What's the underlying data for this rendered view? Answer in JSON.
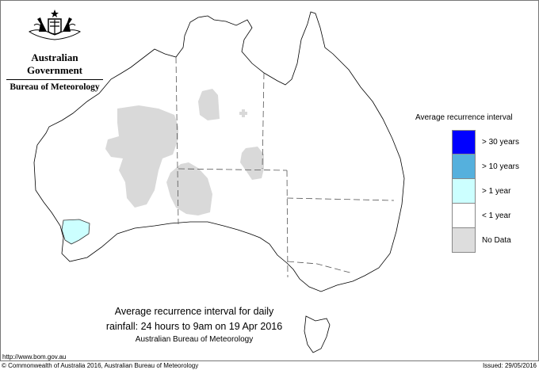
{
  "header": {
    "org_line1": "Australian Government",
    "org_line2": "Bureau of Meteorology",
    "logo": "coat-of-arms"
  },
  "legend": {
    "title": "Average recurrence interval",
    "items": [
      {
        "label": "> 30 years",
        "color": "#0000ff"
      },
      {
        "label": "> 10 years",
        "color": "#55b0dd"
      },
      {
        "label": "> 1 year",
        "color": "#ccffff"
      },
      {
        "label": "< 1 year",
        "color": "#ffffff"
      },
      {
        "label": "No Data",
        "color": "#dddddd"
      }
    ]
  },
  "caption": {
    "line1": "Average recurrence interval for daily",
    "line2": "rainfall: 24 hours to 9am on 19 Apr 2016",
    "line3": "Australian Bureau of Meteorology"
  },
  "footer": {
    "url": "http://www.bom.gov.au",
    "copyright": "© Commonwealth of Australia 2016, Australian Bureau of Meteorology",
    "issued": "Issued: 29/05/2016"
  }
}
